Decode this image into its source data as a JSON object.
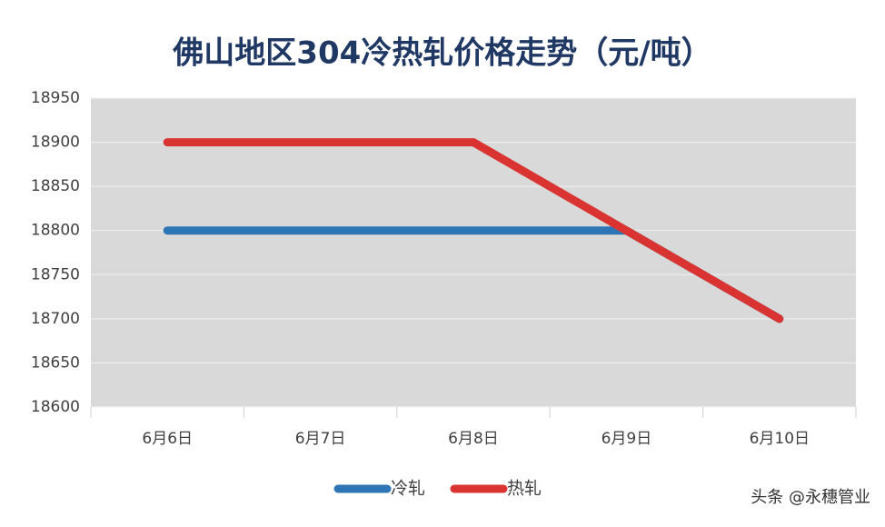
{
  "chart_data": {
    "type": "line",
    "title": "佛山地区304冷热轧价格走势（元/吨）",
    "categories": [
      "6月6日",
      "6月7日",
      "6月8日",
      "6月9日",
      "6月10日"
    ],
    "series": [
      {
        "name": "冷轧",
        "color": "#2e75b6",
        "values": [
          18800,
          18800,
          18800,
          18800,
          18700
        ]
      },
      {
        "name": "热轧",
        "color": "#d93431",
        "values": [
          18900,
          18900,
          18900,
          18800,
          18700
        ]
      }
    ],
    "ylim": [
      18600,
      18950
    ],
    "yticks": [
      18600,
      18650,
      18700,
      18750,
      18800,
      18850,
      18900,
      18950
    ],
    "grid": true,
    "legend": "bottom"
  },
  "watermark": "头条 @永穗管业"
}
